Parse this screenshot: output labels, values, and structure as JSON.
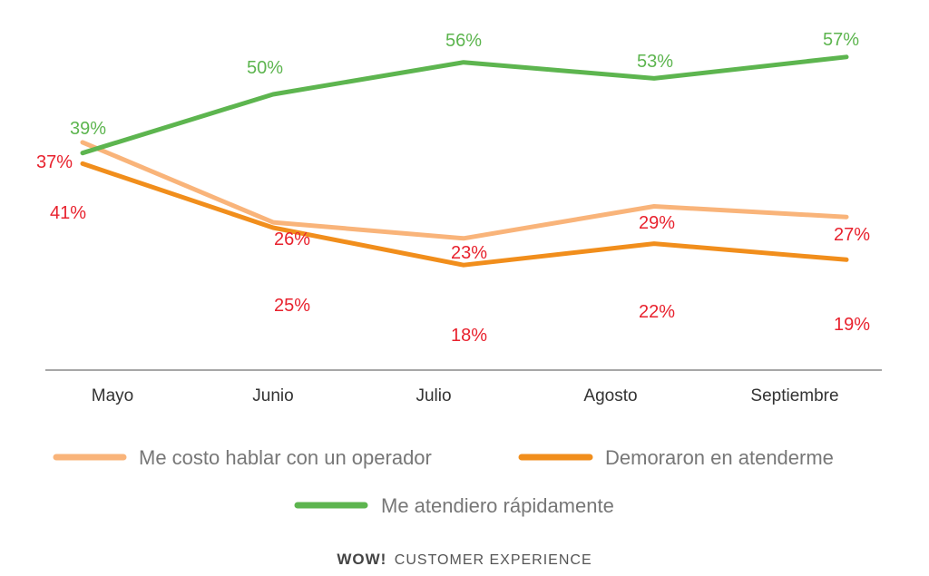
{
  "chart_data": {
    "type": "line",
    "categories": [
      "Mayo",
      "Junio",
      "Julio",
      "Agosto",
      "Septiembre"
    ],
    "ylim": [
      0,
      70
    ],
    "grid": false,
    "legend_position": "bottom",
    "series": [
      {
        "name": "Me costo hablar con un operador",
        "color": "#F9B47A",
        "label_color": "#E8222E",
        "values": [
          41,
          26,
          23,
          29,
          27
        ],
        "labels": [
          "41%",
          "26%",
          "23%",
          "29%",
          "27%"
        ]
      },
      {
        "name": "Demoraron en atenderme",
        "color": "#F18E1C",
        "label_color": "#E8222E",
        "values": [
          37,
          25,
          18,
          22,
          19
        ],
        "labels": [
          "37%",
          "25%",
          "18%",
          "22%",
          "19%"
        ]
      },
      {
        "name": "Me atendiero rápidamente",
        "color": "#5DB54F",
        "label_color": "#5DB54F",
        "values": [
          39,
          50,
          56,
          53,
          57
        ],
        "labels": [
          "39%",
          "50%",
          "56%",
          "53%",
          "57%"
        ]
      }
    ]
  },
  "brand": {
    "logo_text": "WOW!",
    "name": "CUSTOMER EXPERIENCE"
  }
}
